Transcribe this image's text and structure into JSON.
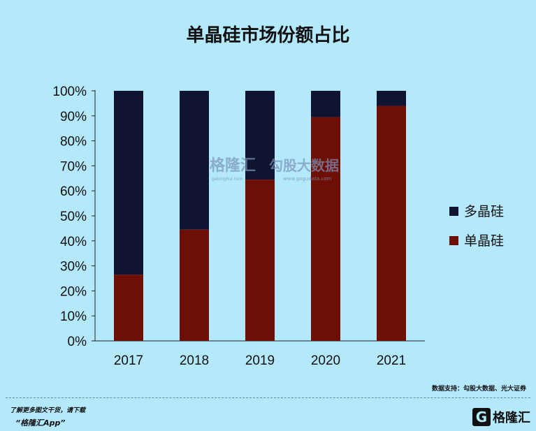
{
  "chart_data": {
    "type": "bar",
    "stacked": true,
    "title": "单晶硅市场份额占比",
    "categories": [
      "2017",
      "2018",
      "2019",
      "2020",
      "2021"
    ],
    "series": [
      {
        "name": "单晶硅",
        "color": "#6e0f05",
        "values": [
          26.5,
          44.5,
          64.5,
          89.5,
          94
        ]
      },
      {
        "name": "多晶硅",
        "color": "#0f1430",
        "values": [
          73.5,
          55.5,
          35.5,
          10.5,
          6
        ]
      }
    ],
    "ylim": [
      0,
      100
    ],
    "yticks": [
      "0%",
      "10%",
      "20%",
      "30%",
      "40%",
      "50%",
      "60%",
      "70%",
      "80%",
      "90%",
      "100%"
    ],
    "legend_position": "right",
    "grid": false
  },
  "watermark": {
    "main": "格隆汇",
    "right": "勾股大数据",
    "small_left": "gelonghui.com",
    "small_right": "www.gogudata.com"
  },
  "footer": {
    "source": "数据支持：勾股大数据、光大证券",
    "download_hint": "了解更多图文干货，请下载",
    "app_name": "“格隆汇App”",
    "brand_mark": "G",
    "brand_text": "格隆汇"
  }
}
